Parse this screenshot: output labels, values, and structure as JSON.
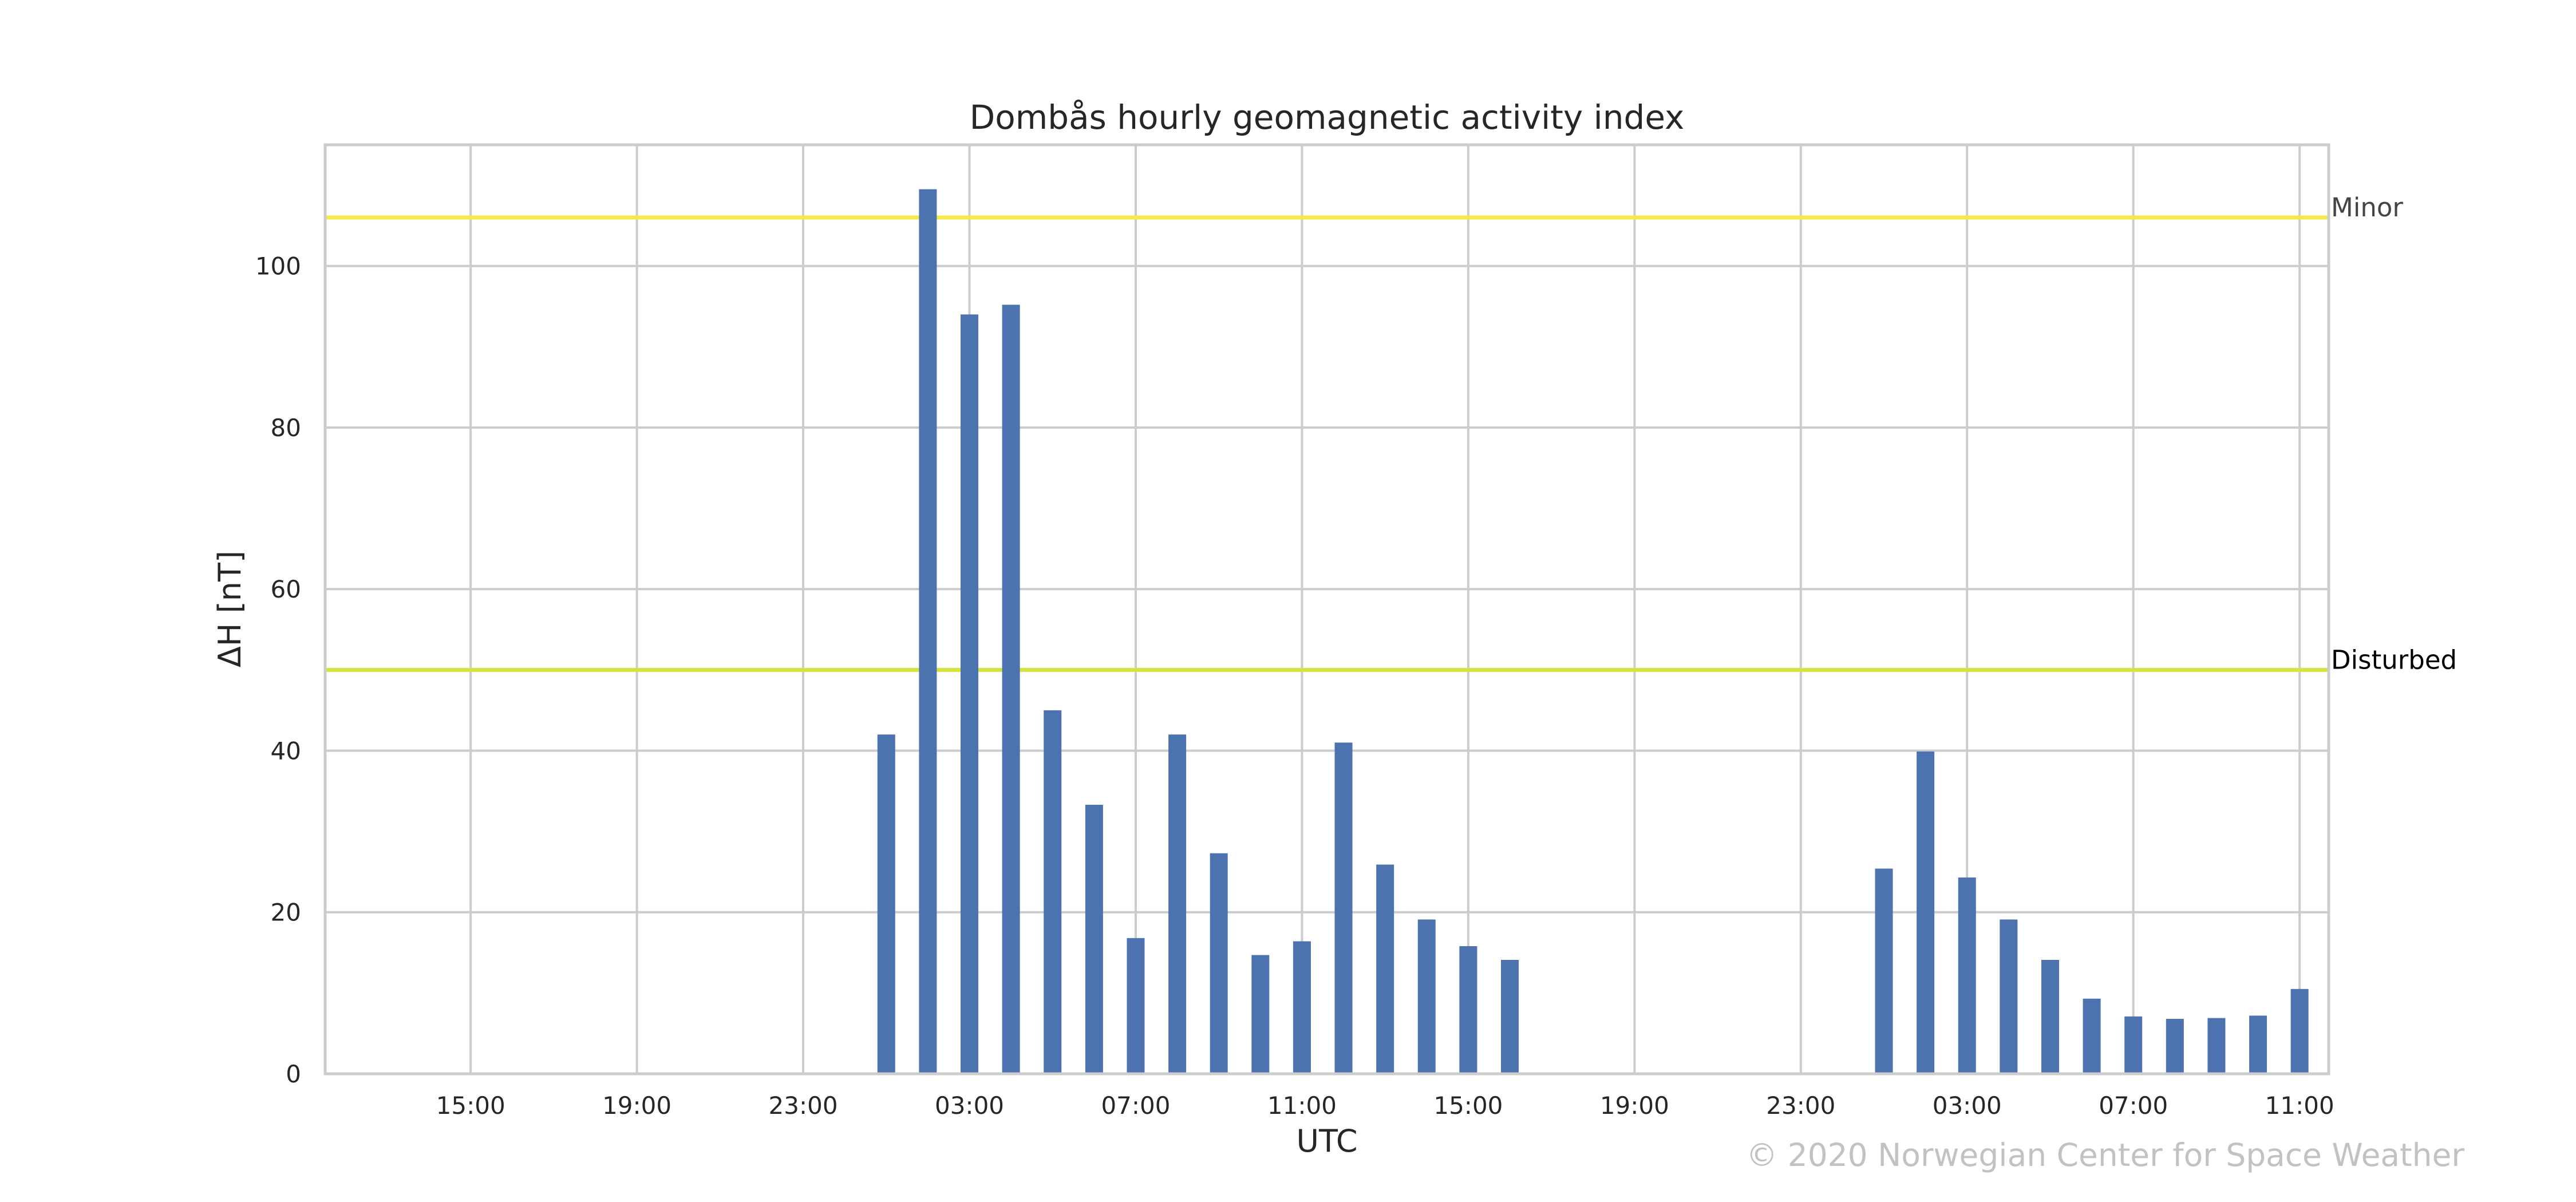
{
  "chart_data": {
    "type": "bar",
    "title": "Dombås hourly geomagnetic activity index",
    "xlabel": "UTC",
    "ylabel": "ΔH [nT]",
    "x_start_hour": 11.5,
    "x_end_hour": 59.7,
    "ylim": [
      0,
      115
    ],
    "grid": true,
    "xticks": [
      {
        "hour": 15,
        "label": "15:00"
      },
      {
        "hour": 19,
        "label": "19:00"
      },
      {
        "hour": 23,
        "label": "23:00"
      },
      {
        "hour": 27,
        "label": "03:00"
      },
      {
        "hour": 31,
        "label": "07:00"
      },
      {
        "hour": 35,
        "label": "11:00"
      },
      {
        "hour": 39,
        "label": "15:00"
      },
      {
        "hour": 43,
        "label": "19:00"
      },
      {
        "hour": 47,
        "label": "23:00"
      },
      {
        "hour": 51,
        "label": "03:00"
      },
      {
        "hour": 55,
        "label": "07:00"
      },
      {
        "hour": 59,
        "label": "11:00"
      }
    ],
    "yticks": [
      0,
      20,
      40,
      60,
      80,
      100
    ],
    "thresholds": [
      {
        "label": "Minor",
        "value": 106,
        "color": "#f5e94a",
        "label_color": "#444444"
      },
      {
        "label": "Disturbed",
        "value": 50,
        "color": "#d4e43a",
        "label_color": "#000000"
      }
    ],
    "bar_color": "#4c72b0",
    "bars": [
      {
        "hour": 25,
        "value": 42
      },
      {
        "hour": 26,
        "value": 109.5
      },
      {
        "hour": 27,
        "value": 94
      },
      {
        "hour": 28,
        "value": 95.2
      },
      {
        "hour": 29,
        "value": 45
      },
      {
        "hour": 30,
        "value": 33.3
      },
      {
        "hour": 31,
        "value": 16.8
      },
      {
        "hour": 32,
        "value": 42
      },
      {
        "hour": 33,
        "value": 27.3
      },
      {
        "hour": 34,
        "value": 14.7
      },
      {
        "hour": 35,
        "value": 16.4
      },
      {
        "hour": 36,
        "value": 41
      },
      {
        "hour": 37,
        "value": 25.9
      },
      {
        "hour": 38,
        "value": 19.1
      },
      {
        "hour": 39,
        "value": 15.8
      },
      {
        "hour": 40,
        "value": 14.1
      },
      {
        "hour": 49,
        "value": 25.4
      },
      {
        "hour": 50,
        "value": 39.9
      },
      {
        "hour": 51,
        "value": 24.3
      },
      {
        "hour": 52,
        "value": 19.1
      },
      {
        "hour": 53,
        "value": 14.1
      },
      {
        "hour": 54,
        "value": 9.3
      },
      {
        "hour": 55,
        "value": 7.1
      },
      {
        "hour": 56,
        "value": 6.8
      },
      {
        "hour": 57,
        "value": 6.9
      },
      {
        "hour": 58,
        "value": 7.2
      },
      {
        "hour": 59,
        "value": 10.5
      }
    ]
  },
  "copyright": "© 2020 Norwegian Center for Space Weather"
}
